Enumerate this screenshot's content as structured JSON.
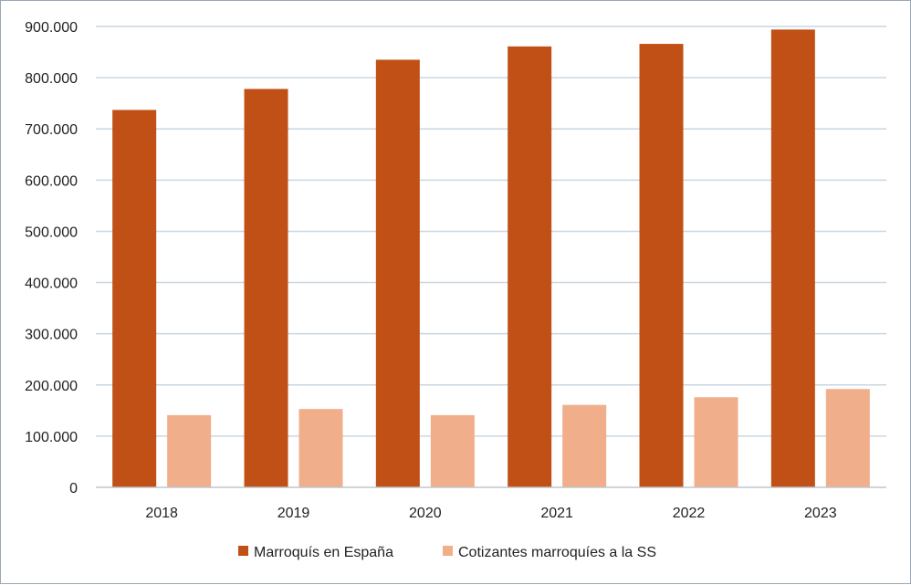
{
  "chart_data": {
    "type": "bar",
    "title": "",
    "xlabel": "",
    "ylabel": "",
    "categories": [
      "2018",
      "2019",
      "2020",
      "2021",
      "2022",
      "2023"
    ],
    "series": [
      {
        "name": "Marroquís en España",
        "values": [
          737000,
          778000,
          835000,
          861000,
          866000,
          894000
        ],
        "color": "#c05016"
      },
      {
        "name": "Cotizantes marroquíes a la SS",
        "values": [
          141000,
          153000,
          141000,
          161000,
          176000,
          192000
        ],
        "color": "#f1ae8a"
      }
    ],
    "ylim": [
      0,
      900000
    ],
    "yticks": [
      "0",
      "100.000",
      "200.000",
      "300.000",
      "400.000",
      "500.000",
      "600.000",
      "700.000",
      "800.000",
      "900.000"
    ],
    "grid": true,
    "legend_position": "bottom",
    "gridline_color": "#c9d6e0"
  }
}
